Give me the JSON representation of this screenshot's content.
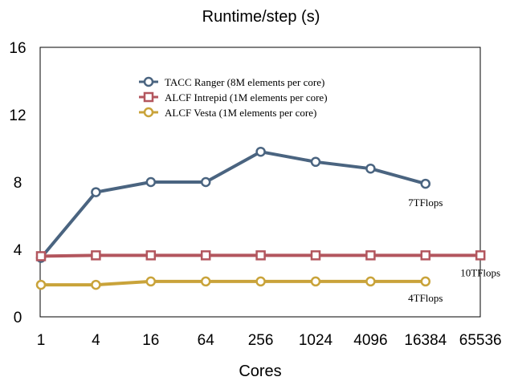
{
  "chart_data": {
    "type": "line",
    "title": "Runtime/step (s)",
    "xlabel": "Cores",
    "ylabel": "",
    "categories": [
      "1",
      "4",
      "16",
      "64",
      "256",
      "1024",
      "4096",
      "16384",
      "65536"
    ],
    "ylim": [
      0,
      16
    ],
    "yticks": [
      "0",
      "4",
      "8",
      "12",
      "16"
    ],
    "grid": false,
    "legend_position": "top-center",
    "series": [
      {
        "name": "TACC Ranger (8M elements per core)",
        "color": "#4a6480",
        "marker": "circle",
        "values": [
          3.5,
          7.4,
          8.0,
          8.0,
          9.8,
          9.2,
          8.8,
          7.9,
          null
        ]
      },
      {
        "name": "ALCF Intrepid (1M elements per core)",
        "color": "#b3565e",
        "marker": "square",
        "values": [
          3.6,
          3.65,
          3.65,
          3.65,
          3.65,
          3.65,
          3.65,
          3.65,
          3.65
        ]
      },
      {
        "name": "ALCF Vesta (1M elements per core)",
        "color": "#c9a33a",
        "marker": "circle",
        "values": [
          1.9,
          1.9,
          2.1,
          2.1,
          2.1,
          2.1,
          2.1,
          2.1,
          null
        ]
      }
    ],
    "annotations": [
      {
        "text": "7TFlops",
        "series": 0,
        "index": 7
      },
      {
        "text": "10TFlops",
        "series": 1,
        "index": 8
      },
      {
        "text": "4TFlops",
        "series": 2,
        "index": 7
      }
    ]
  }
}
